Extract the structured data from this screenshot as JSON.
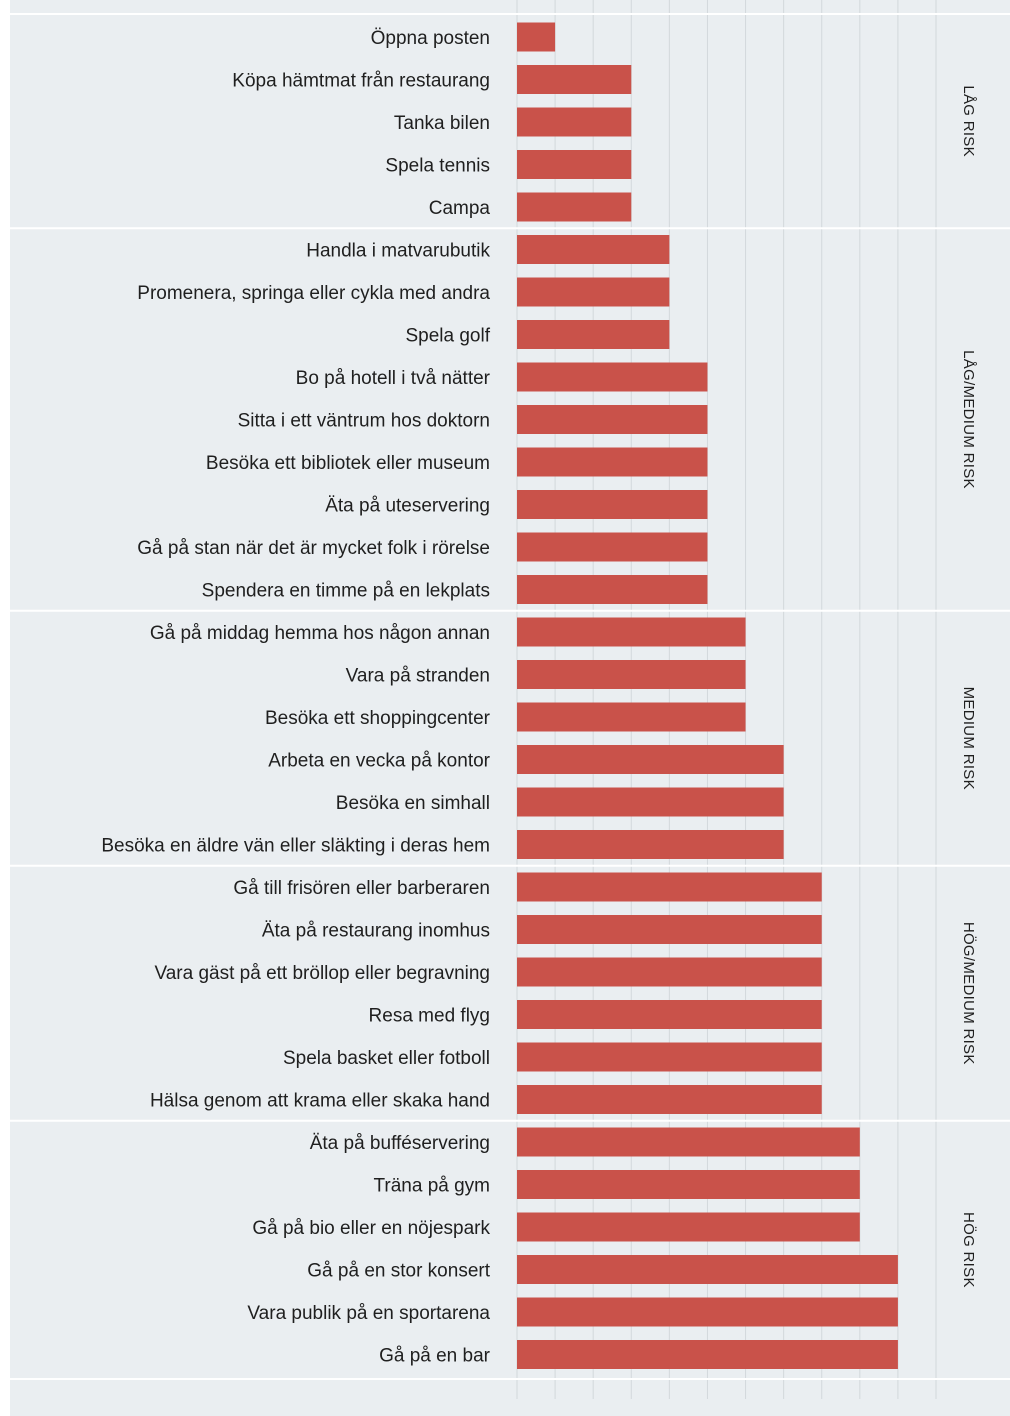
{
  "chart_data": {
    "type": "bar",
    "orientation": "horizontal",
    "categories": [
      "Öppna posten",
      "Köpa hämtmat från restaurang",
      "Tanka bilen",
      "Spela tennis",
      "Campa",
      "Handla i matvarubutik",
      "Promenera, springa eller cykla med andra",
      "Spela golf",
      "Bo på hotell i två nätter",
      "Sitta i ett väntrum hos doktorn",
      "Besöka ett bibliotek eller museum",
      "Äta på uteservering",
      "Gå på stan när det är mycket folk i rörelse",
      "Spendera en timme på en lekplats",
      "Gå på middag hemma hos någon annan",
      "Vara på stranden",
      "Besöka ett shoppingcenter",
      "Arbeta en vecka på kontor",
      "Besöka en simhall",
      "Besöka en äldre vän eller släkting i deras hem",
      "Gå till frisören eller barberaren",
      "Äta på restaurang inomhus",
      "Vara gäst på ett bröllop eller begravning",
      "Resa med flyg",
      "Spela basket eller fotboll",
      "Hälsa genom att krama eller skaka hand",
      "Äta på bufféservering",
      "Träna på gym",
      "Gå på bio eller en nöjespark",
      "Gå på en stor konsert",
      "Vara publik på en sportarena",
      "Gå på en bar"
    ],
    "values": [
      2,
      4,
      4,
      4,
      4,
      5,
      5,
      5,
      6,
      6,
      6,
      6,
      6,
      6,
      7,
      7,
      7,
      8,
      8,
      8,
      9,
      9,
      9,
      9,
      9,
      9,
      10,
      10,
      10,
      11,
      11,
      11
    ],
    "groups": [
      {
        "label": "LÅG RISK",
        "start": 0,
        "end": 4
      },
      {
        "label": "LÅG/MEDIUM RISK",
        "start": 5,
        "end": 13
      },
      {
        "label": "MEDIUM RISK",
        "start": 14,
        "end": 19
      },
      {
        "label": "HÖG/MEDIUM RISK",
        "start": 20,
        "end": 25
      },
      {
        "label": "HÖG RISK",
        "start": 26,
        "end": 31
      }
    ],
    "xlim": [
      1,
      12
    ],
    "gridlines": [
      1,
      2,
      3,
      4,
      5,
      6,
      7,
      8,
      9,
      10,
      11,
      12
    ],
    "title": "",
    "xlabel": "",
    "ylabel": "",
    "legend": "none",
    "grid": true
  },
  "colors": {
    "bar": "#c9524a",
    "panel": "#eaeef1",
    "gridline": "#d3d8dc",
    "separator": "#ffffff"
  }
}
